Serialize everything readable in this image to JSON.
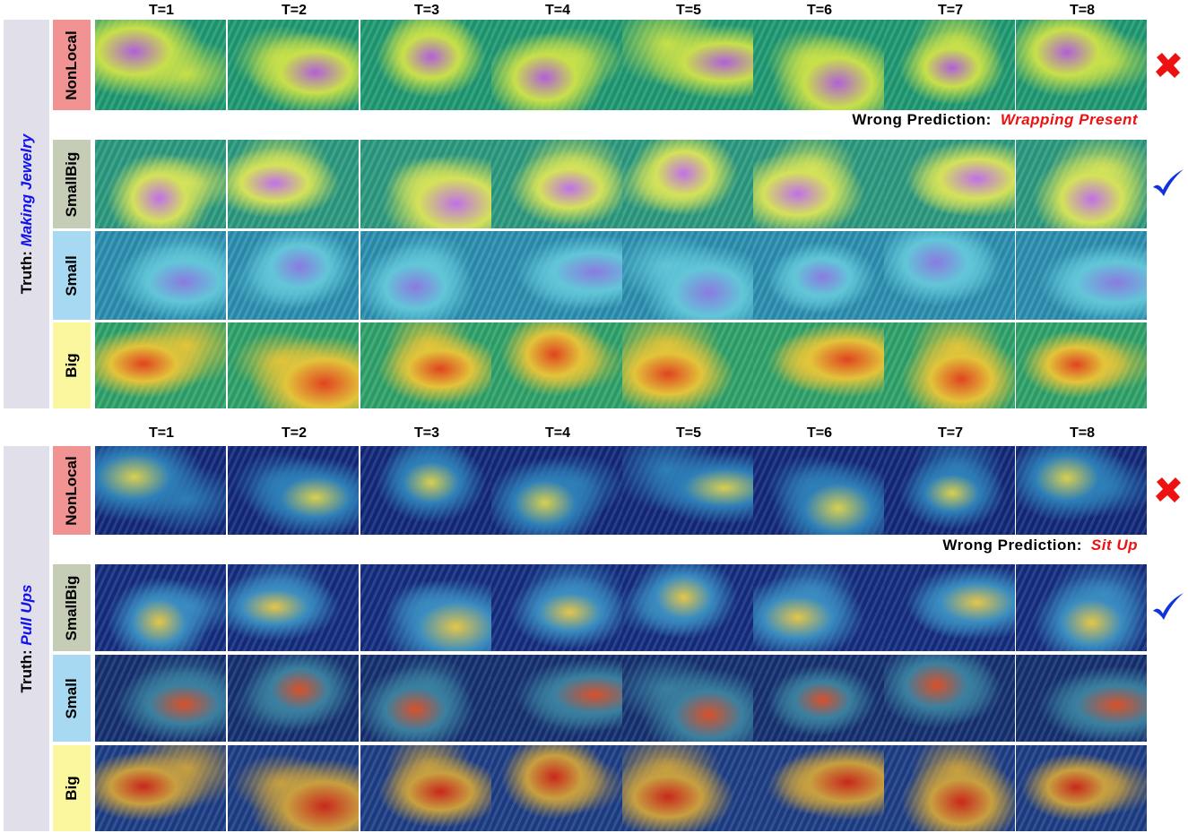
{
  "frames": [
    "T=1",
    "T=2",
    "T=3",
    "T=4",
    "T=5",
    "T=6",
    "T=7",
    "T=8"
  ],
  "blocks": [
    {
      "truth_label": "Truth:",
      "truth_class": "Making Jewelry",
      "rows": [
        {
          "label": "NonLocal",
          "color": "#f29393",
          "result": "wrong"
        },
        {
          "label": "SmallBig",
          "color": "#c6cdb7",
          "result": "correct"
        },
        {
          "label": "Small",
          "color": "#a7d9f3",
          "result": ""
        },
        {
          "label": "Big",
          "color": "#fbf79e",
          "result": ""
        }
      ],
      "wrong_prediction": {
        "label": "Wrong Prediction:",
        "value": "Wrapping Present"
      }
    },
    {
      "truth_label": "Truth:",
      "truth_class": "Pull Ups",
      "rows": [
        {
          "label": "NonLocal",
          "color": "#f29393",
          "result": "wrong"
        },
        {
          "label": "SmallBig",
          "color": "#c6cdb7",
          "result": "correct"
        },
        {
          "label": "Small",
          "color": "#a7d9f3",
          "result": ""
        },
        {
          "label": "Big",
          "color": "#fbf79e",
          "result": ""
        }
      ],
      "wrong_prediction": {
        "label": "Wrong Prediction:",
        "value": "Sit Up"
      }
    }
  ],
  "colors": {
    "wrong_mark": "#ee1111",
    "correct_mark": "#1133dd",
    "truth_class": "#1111ee",
    "wrong_pred": "#ee1111"
  }
}
